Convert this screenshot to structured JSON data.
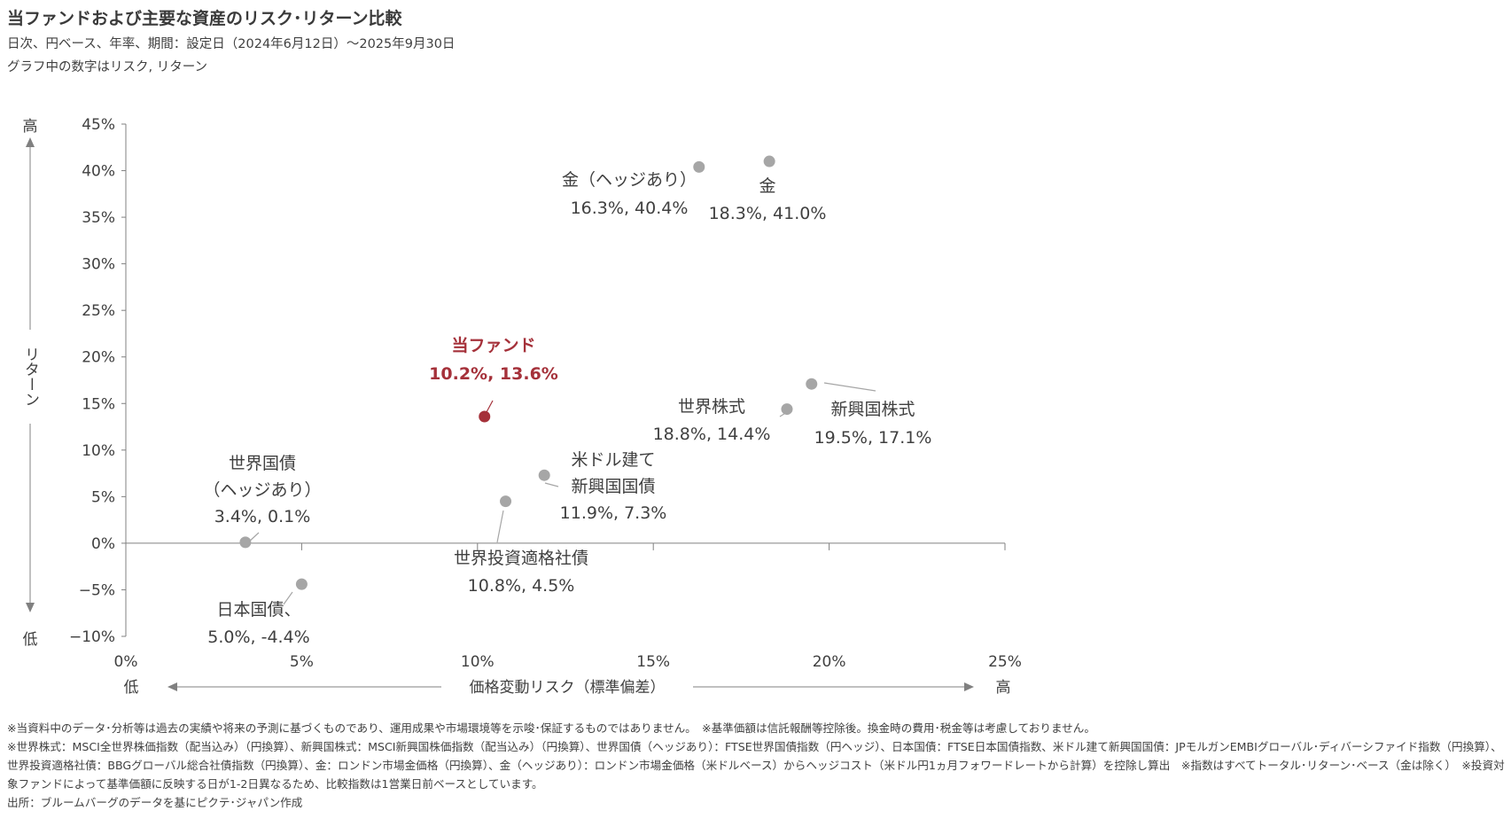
{
  "header": {
    "title": "当ファンドおよび主要な資産のリスク･リターン比較",
    "subtitle": "日次、円ベース、年率、期間：設定日（2024年6月12日）～2025年9月30日",
    "note": "グラフ中の数字はリスク, リターン"
  },
  "chart_data": {
    "type": "scatter",
    "xlabel": "価格変動リスク（標準偏差）",
    "ylabel": "リターン",
    "x_low_label": "低",
    "x_high_label": "高",
    "y_low_label": "低",
    "y_high_label": "高",
    "xlim": [
      0,
      25
    ],
    "ylim": [
      -10,
      45
    ],
    "x_ticks": [
      0,
      5,
      10,
      15,
      20,
      25
    ],
    "y_ticks": [
      -10,
      -5,
      0,
      5,
      10,
      15,
      20,
      25,
      30,
      35,
      40,
      45
    ],
    "x_tick_labels": [
      "0%",
      "5%",
      "10%",
      "15%",
      "20%",
      "25%"
    ],
    "y_tick_labels": [
      "−10%",
      "−5%",
      "0%",
      "5%",
      "10%",
      "15%",
      "20%",
      "25%",
      "30%",
      "35%",
      "40%",
      "45%"
    ],
    "point_color": "#a6a6a6",
    "highlight_color": "#a5313a",
    "points": [
      {
        "name": "金（ヘッジあり）",
        "name2": "",
        "value_label": "16.3%, 40.4%",
        "x": 16.3,
        "y": 40.4,
        "highlight": false
      },
      {
        "name": "金",
        "name2": "",
        "value_label": "18.3%, 41.0%",
        "x": 18.3,
        "y": 41.0,
        "highlight": false
      },
      {
        "name": "当ファンド",
        "name2": "",
        "value_label": "10.2%, 13.6%",
        "x": 10.2,
        "y": 13.6,
        "highlight": true
      },
      {
        "name": "世界株式",
        "name2": "",
        "value_label": "18.8%, 14.4%",
        "x": 18.8,
        "y": 14.4,
        "highlight": false
      },
      {
        "name": "新興国株式",
        "name2": "",
        "value_label": "19.5%, 17.1%",
        "x": 19.5,
        "y": 17.1,
        "highlight": false
      },
      {
        "name": "米ドル建て",
        "name2": "新興国国債",
        "value_label": "11.9%, 7.3%",
        "x": 11.9,
        "y": 7.3,
        "highlight": false
      },
      {
        "name": "世界国債",
        "name2": "（ヘッジあり）",
        "value_label": "3.4%, 0.1%",
        "x": 3.4,
        "y": 0.1,
        "highlight": false
      },
      {
        "name": "世界投資適格社債",
        "name2": "",
        "value_label": "10.8%, 4.5%",
        "x": 10.8,
        "y": 4.5,
        "highlight": false
      },
      {
        "name": "日本国債、",
        "name2": "",
        "value_label": "5.0%, -4.4%",
        "x": 5.0,
        "y": -4.4,
        "highlight": false
      }
    ]
  },
  "footnotes": [
    "※当資料中のデータ･分析等は過去の実績や将来の予測に基づくものであり、運用成果や市場環境等を示唆･保証するものではありません。　※基準価額は信託報酬等控除後。換金時の費用･税金等は考慮しておりません。",
    "※世界株式：MSCI全世界株価指数（配当込み）（円換算）、新興国株式：MSCI新興国株価指数（配当込み）（円換算）、世界国債（ヘッジあり）：FTSE世界国債指数（円ヘッジ）、日本国債：FTSE日本国債指数、米ドル建て新興国国債：JPモルガンEMBIグローバル･ディバーシファイド指数（円換算）、世界投資適格社債：BBGグローバル総合社債指数（円換算）、金：ロンドン市場金価格（円換算）、金（ヘッジあり）：ロンドン市場金価格（米ドルベース）からヘッジコスト（米ドル円1ヵ月フォワードレートから計算）を控除し算出　※指数はすべてトータル･リターン･ベース（金は除く）　※投資対象ファンドによって基準価額に反映する日が1-2日異なるため、比較指数は1営業日前ベースとしています。",
    "出所：ブルームバーグのデータを基にピクテ･ジャパン作成"
  ]
}
